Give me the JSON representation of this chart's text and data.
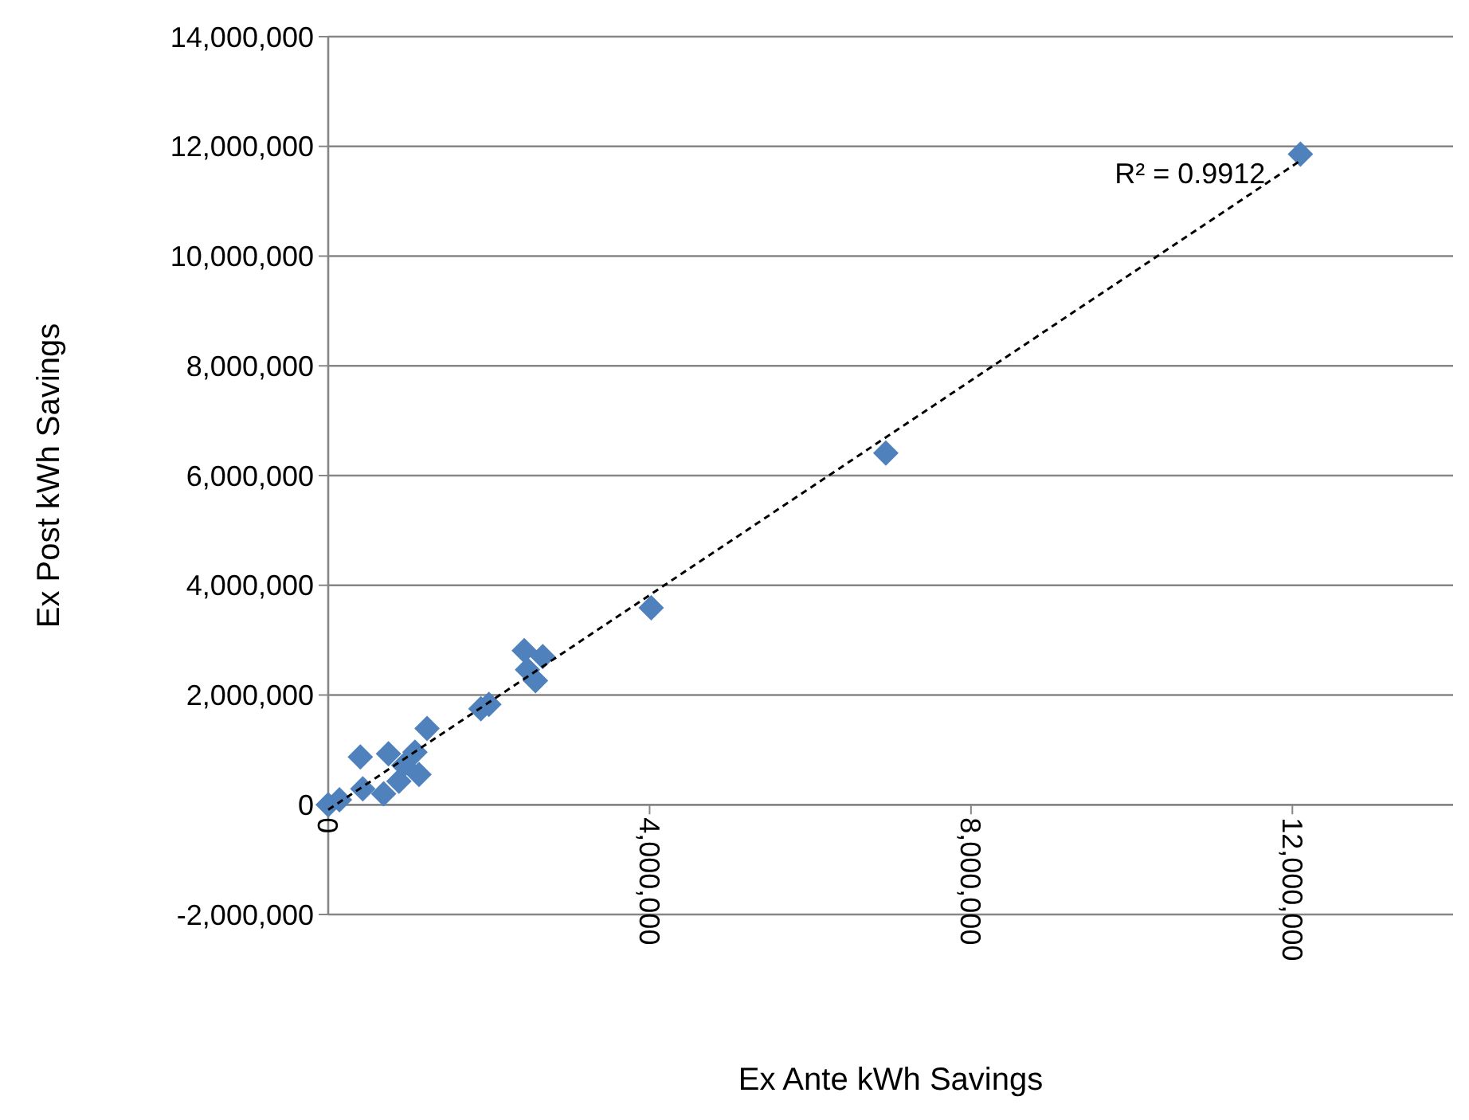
{
  "chart_data": {
    "type": "scatter",
    "xlabel": "Ex Ante kWh Savings",
    "ylabel": "Ex Post kWh Savings",
    "xlim": [
      0,
      14000000
    ],
    "ylim": [
      -2000000,
      14000000
    ],
    "xticks": [
      {
        "value": 0,
        "label": "0"
      },
      {
        "value": 4000000,
        "label": "4,000,000"
      },
      {
        "value": 8000000,
        "label": "8,000,000"
      },
      {
        "value": 12000000,
        "label": "12,000,000"
      }
    ],
    "yticks": [
      {
        "value": -2000000,
        "label": "-2,000,000"
      },
      {
        "value": 0,
        "label": "0"
      },
      {
        "value": 2000000,
        "label": "2,000,000"
      },
      {
        "value": 4000000,
        "label": "4,000,000"
      },
      {
        "value": 6000000,
        "label": "6,000,000"
      },
      {
        "value": 8000000,
        "label": "8,000,000"
      },
      {
        "value": 10000000,
        "label": "10,000,000"
      },
      {
        "value": 12000000,
        "label": "12,000,000"
      },
      {
        "value": 14000000,
        "label": "14,000,000"
      }
    ],
    "grid": "y",
    "annotations": [
      "R² = 0.9912"
    ],
    "series": [
      {
        "color": "#4f81bd",
        "marker": "diamond",
        "x": [
          0,
          140000,
          400000,
          430000,
          690000,
          750000,
          880000,
          940000,
          1080000,
          1130000,
          1230000,
          1900000,
          2000000,
          2440000,
          2480000,
          2580000,
          2670000,
          4020000,
          6940000,
          12100000
        ],
        "values": [
          0,
          90000,
          870000,
          290000,
          200000,
          930000,
          430000,
          720000,
          960000,
          550000,
          1390000,
          1750000,
          1830000,
          2810000,
          2460000,
          2260000,
          2700000,
          3590000,
          6410000,
          11860000
        ]
      },
      {
        "type": "line",
        "color": "#000000",
        "marker": "none",
        "line_style": "dashed",
        "x": [
          0,
          12100000
        ],
        "values": [
          -90000,
          11740000
        ]
      }
    ]
  }
}
